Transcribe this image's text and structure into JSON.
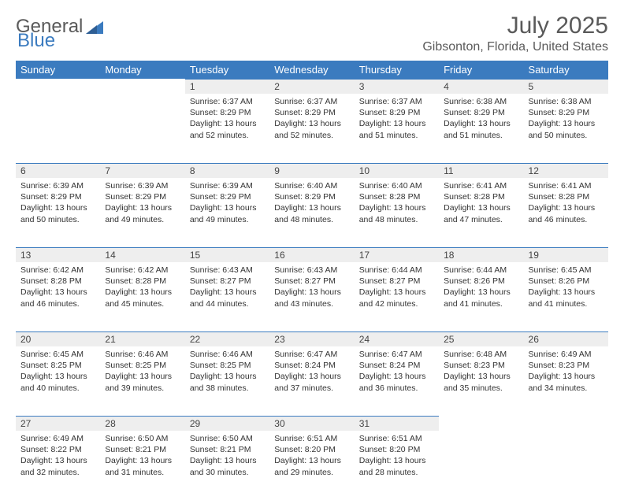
{
  "brand": {
    "part1": "General",
    "part2": "Blue"
  },
  "title": "July 2025",
  "location": "Gibsonton, Florida, United States",
  "colors": {
    "accent": "#3b7bbf",
    "header_text": "#ffffff",
    "daynum_bg": "#eeeeee",
    "text": "#333333",
    "muted": "#5a5a5a",
    "page_bg": "#ffffff"
  },
  "calendar": {
    "day_names": [
      "Sunday",
      "Monday",
      "Tuesday",
      "Wednesday",
      "Thursday",
      "Friday",
      "Saturday"
    ],
    "weeks": [
      [
        null,
        null,
        {
          "n": 1,
          "sr": "6:37 AM",
          "ss": "8:29 PM",
          "dl": "13 hours and 52 minutes."
        },
        {
          "n": 2,
          "sr": "6:37 AM",
          "ss": "8:29 PM",
          "dl": "13 hours and 52 minutes."
        },
        {
          "n": 3,
          "sr": "6:37 AM",
          "ss": "8:29 PM",
          "dl": "13 hours and 51 minutes."
        },
        {
          "n": 4,
          "sr": "6:38 AM",
          "ss": "8:29 PM",
          "dl": "13 hours and 51 minutes."
        },
        {
          "n": 5,
          "sr": "6:38 AM",
          "ss": "8:29 PM",
          "dl": "13 hours and 50 minutes."
        }
      ],
      [
        {
          "n": 6,
          "sr": "6:39 AM",
          "ss": "8:29 PM",
          "dl": "13 hours and 50 minutes."
        },
        {
          "n": 7,
          "sr": "6:39 AM",
          "ss": "8:29 PM",
          "dl": "13 hours and 49 minutes."
        },
        {
          "n": 8,
          "sr": "6:39 AM",
          "ss": "8:29 PM",
          "dl": "13 hours and 49 minutes."
        },
        {
          "n": 9,
          "sr": "6:40 AM",
          "ss": "8:29 PM",
          "dl": "13 hours and 48 minutes."
        },
        {
          "n": 10,
          "sr": "6:40 AM",
          "ss": "8:28 PM",
          "dl": "13 hours and 48 minutes."
        },
        {
          "n": 11,
          "sr": "6:41 AM",
          "ss": "8:28 PM",
          "dl": "13 hours and 47 minutes."
        },
        {
          "n": 12,
          "sr": "6:41 AM",
          "ss": "8:28 PM",
          "dl": "13 hours and 46 minutes."
        }
      ],
      [
        {
          "n": 13,
          "sr": "6:42 AM",
          "ss": "8:28 PM",
          "dl": "13 hours and 46 minutes."
        },
        {
          "n": 14,
          "sr": "6:42 AM",
          "ss": "8:28 PM",
          "dl": "13 hours and 45 minutes."
        },
        {
          "n": 15,
          "sr": "6:43 AM",
          "ss": "8:27 PM",
          "dl": "13 hours and 44 minutes."
        },
        {
          "n": 16,
          "sr": "6:43 AM",
          "ss": "8:27 PM",
          "dl": "13 hours and 43 minutes."
        },
        {
          "n": 17,
          "sr": "6:44 AM",
          "ss": "8:27 PM",
          "dl": "13 hours and 42 minutes."
        },
        {
          "n": 18,
          "sr": "6:44 AM",
          "ss": "8:26 PM",
          "dl": "13 hours and 41 minutes."
        },
        {
          "n": 19,
          "sr": "6:45 AM",
          "ss": "8:26 PM",
          "dl": "13 hours and 41 minutes."
        }
      ],
      [
        {
          "n": 20,
          "sr": "6:45 AM",
          "ss": "8:25 PM",
          "dl": "13 hours and 40 minutes."
        },
        {
          "n": 21,
          "sr": "6:46 AM",
          "ss": "8:25 PM",
          "dl": "13 hours and 39 minutes."
        },
        {
          "n": 22,
          "sr": "6:46 AM",
          "ss": "8:25 PM",
          "dl": "13 hours and 38 minutes."
        },
        {
          "n": 23,
          "sr": "6:47 AM",
          "ss": "8:24 PM",
          "dl": "13 hours and 37 minutes."
        },
        {
          "n": 24,
          "sr": "6:47 AM",
          "ss": "8:24 PM",
          "dl": "13 hours and 36 minutes."
        },
        {
          "n": 25,
          "sr": "6:48 AM",
          "ss": "8:23 PM",
          "dl": "13 hours and 35 minutes."
        },
        {
          "n": 26,
          "sr": "6:49 AM",
          "ss": "8:23 PM",
          "dl": "13 hours and 34 minutes."
        }
      ],
      [
        {
          "n": 27,
          "sr": "6:49 AM",
          "ss": "8:22 PM",
          "dl": "13 hours and 32 minutes."
        },
        {
          "n": 28,
          "sr": "6:50 AM",
          "ss": "8:21 PM",
          "dl": "13 hours and 31 minutes."
        },
        {
          "n": 29,
          "sr": "6:50 AM",
          "ss": "8:21 PM",
          "dl": "13 hours and 30 minutes."
        },
        {
          "n": 30,
          "sr": "6:51 AM",
          "ss": "8:20 PM",
          "dl": "13 hours and 29 minutes."
        },
        {
          "n": 31,
          "sr": "6:51 AM",
          "ss": "8:20 PM",
          "dl": "13 hours and 28 minutes."
        },
        null,
        null
      ]
    ],
    "labels": {
      "sunrise": "Sunrise:",
      "sunset": "Sunset:",
      "daylight": "Daylight:"
    }
  }
}
